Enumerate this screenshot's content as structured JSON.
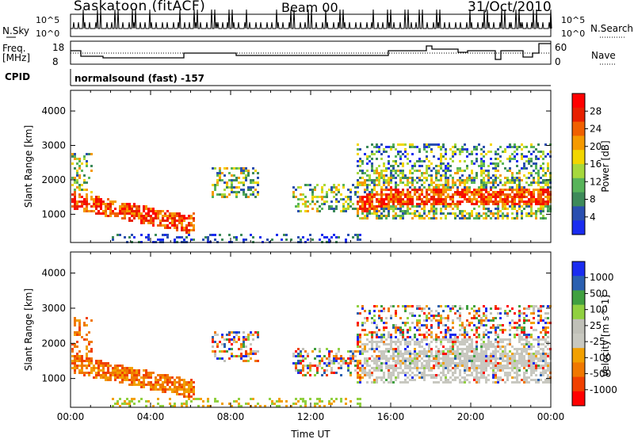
{
  "header": {
    "title_left": "Saskatoon (fitACF)",
    "title_center": "Beam 00",
    "title_right": "31/Oct/2010"
  },
  "top_panels": {
    "nsky_label": "N.Sky",
    "nsky_ticks": [
      "10^5",
      "10^0"
    ],
    "nsearch_label": "N.Search",
    "freq_label_1": "Freq.",
    "freq_label_2": "[MHz]",
    "freq_ticks": [
      "18",
      "8"
    ],
    "nave_label": "Nave",
    "nave_ticks": [
      "60",
      "0"
    ],
    "cpid_label": "CPID",
    "cpid_value": "normalsound (fast) -157"
  },
  "colors": {
    "power": [
      "#1a2cf0",
      "#2a4fb0",
      "#3d8a5a",
      "#58b45a",
      "#a6d83c",
      "#f2d600",
      "#f59a00",
      "#f06000",
      "#e82000",
      "#ff0000"
    ],
    "velocity": [
      "#ff0000",
      "#f04000",
      "#f07800",
      "#f2a000",
      "#c8c8c0",
      "#c0c0b8",
      "#90d040",
      "#40a040",
      "#2a60b0",
      "#1a2cf0"
    ]
  },
  "chart_data": [
    {
      "type": "heatmap",
      "title": "",
      "xlabel": "",
      "ylabel": "Slant Range [km]",
      "x_ticks": [
        "00:00",
        "04:00",
        "08:00",
        "12:00",
        "16:00",
        "20:00",
        "00:00"
      ],
      "xlim_hours": [
        0,
        24
      ],
      "y_ticks": [
        1000,
        2000,
        3000,
        4000
      ],
      "ylim_km": [
        180,
        4600
      ],
      "colorbar": {
        "label": "Power [dB]",
        "ticks": [
          "28",
          "24",
          "20",
          "16",
          "12",
          "8",
          "4"
        ],
        "range": [
          0,
          30
        ]
      }
    },
    {
      "type": "heatmap",
      "title": "",
      "xlabel": "Time UT",
      "ylabel": "Slant Range [km]",
      "x_ticks": [
        "00:00",
        "04:00",
        "08:00",
        "12:00",
        "16:00",
        "20:00",
        "00:00"
      ],
      "xlim_hours": [
        0,
        24
      ],
      "y_ticks": [
        1000,
        2000,
        3000,
        4000
      ],
      "ylim_km": [
        180,
        4600
      ],
      "colorbar": {
        "label": "Velocity [m s^-1]",
        "ticks": [
          "1000",
          "500",
          "100",
          "25",
          "-25",
          "-100",
          "-500",
          "-1000"
        ]
      }
    }
  ]
}
